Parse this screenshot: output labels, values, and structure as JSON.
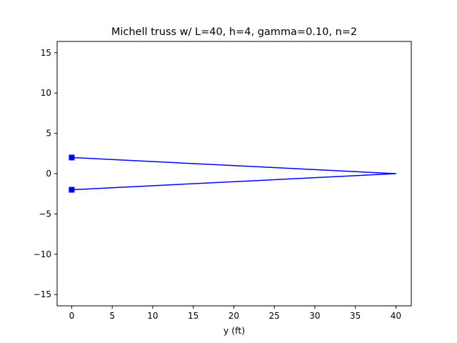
{
  "chart_data": {
    "type": "line",
    "title": "Michell truss w/ L=40, h=4, gamma=0.10, n=2",
    "xlabel": "y (ft)",
    "ylabel": "",
    "xlim": [
      -1.8,
      41.9
    ],
    "ylim": [
      -16.4,
      16.4
    ],
    "xticks": [
      0,
      5,
      10,
      15,
      20,
      25,
      30,
      35,
      40
    ],
    "yticks": [
      -15,
      -10,
      -5,
      0,
      5,
      10,
      15
    ],
    "grid": false,
    "series": [
      {
        "color": "#0000ff",
        "x": [
          0,
          40,
          0
        ],
        "y": [
          2,
          0,
          -2
        ]
      }
    ],
    "markers": {
      "shape": "square",
      "color": "#0000ff",
      "points": [
        {
          "x": 0,
          "y": 2
        },
        {
          "x": 0,
          "y": -2
        }
      ]
    }
  }
}
